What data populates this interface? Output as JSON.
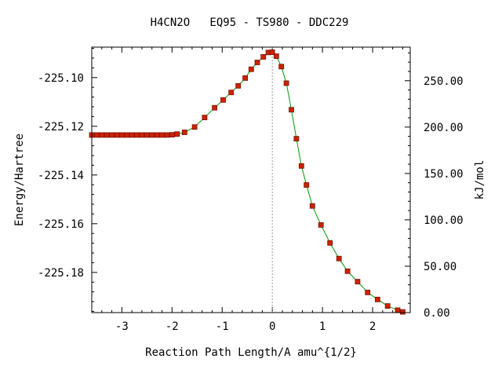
{
  "chart_data": {
    "type": "scatter",
    "title": "H4CN2O   EQ95 - TS980 - DDC229",
    "xlabel": "Reaction Path Length/A amu^{1/2}",
    "ylabel": "Energy/Hartree",
    "ylabel_right": "kJ/mol",
    "xlim": [
      -3.6,
      2.75
    ],
    "ylim": [
      -225.1965,
      -225.0875
    ],
    "right_ylim": [
      0,
      286.2
    ],
    "x_ticks": [
      -3,
      -2,
      -1,
      0,
      1,
      2
    ],
    "x_tick_labels": [
      "-3",
      "-2",
      "-1",
      "0",
      "1",
      "2"
    ],
    "y_ticks": [
      -225.1,
      -225.12,
      -225.14,
      -225.16,
      -225.18
    ],
    "y_tick_labels": [
      "-225.10",
      "-225.12",
      "-225.14",
      "-225.16",
      "-225.18"
    ],
    "right_ticks": [
      0,
      50,
      100,
      150,
      200,
      250
    ],
    "right_tick_labels": [
      "0.00",
      "50.00",
      "100.00",
      "150.00",
      "200.00",
      "250.00"
    ],
    "ts_x": 0,
    "grid": false,
    "colors": {
      "line": "#009900",
      "marker": "#cc2200",
      "marker_edge": "#7a1200",
      "ts_line": "#999999"
    },
    "series": [
      {
        "x": [
          -3.6,
          -3.5,
          -3.4,
          -3.3,
          -3.2,
          -3.1,
          -3.0,
          -2.9,
          -2.8,
          -2.7,
          -2.6,
          -2.5,
          -2.4,
          -2.3,
          -2.2,
          -2.1,
          -2.0,
          -1.9,
          -1.75,
          -1.55,
          -1.35,
          -1.15,
          -0.98,
          -0.82,
          -0.68,
          -0.54,
          -0.42,
          -0.3,
          -0.18,
          -0.08,
          0.0,
          0.08,
          0.18,
          0.28,
          0.38,
          0.48,
          0.58,
          0.68,
          0.8,
          0.97,
          1.15,
          1.33,
          1.5,
          1.7,
          1.9,
          2.1,
          2.3,
          2.5,
          2.6
        ],
        "y": [
          -225.1236,
          -225.1236,
          -225.1236,
          -225.1236,
          -225.1236,
          -225.1236,
          -225.1236,
          -225.1236,
          -225.1236,
          -225.1236,
          -225.1236,
          -225.1236,
          -225.1236,
          -225.1236,
          -225.1236,
          -225.1236,
          -225.1235,
          -225.1232,
          -225.1225,
          -225.1203,
          -225.1164,
          -225.1124,
          -225.1092,
          -225.1061,
          -225.1034,
          -225.1002,
          -225.0966,
          -225.0938,
          -225.0915,
          -225.0897,
          -225.0896,
          -225.0912,
          -225.0955,
          -225.1023,
          -225.1132,
          -225.1251,
          -225.1363,
          -225.1441,
          -225.1527,
          -225.1605,
          -225.1679,
          -225.1743,
          -225.1795,
          -225.1838,
          -225.1882,
          -225.1911,
          -225.1938,
          -225.1955,
          -225.1962
        ]
      }
    ]
  }
}
